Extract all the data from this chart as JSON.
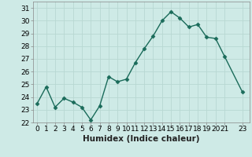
{
  "x": [
    0,
    1,
    2,
    3,
    4,
    5,
    6,
    7,
    8,
    9,
    10,
    11,
    12,
    13,
    14,
    15,
    16,
    17,
    18,
    19,
    20,
    21,
    23
  ],
  "y": [
    23.5,
    24.8,
    23.2,
    23.9,
    23.6,
    23.2,
    22.2,
    23.3,
    25.6,
    25.2,
    25.4,
    26.7,
    27.8,
    28.8,
    30.0,
    30.7,
    30.2,
    29.5,
    29.7,
    28.7,
    28.6,
    27.2,
    24.4
  ],
  "line_color": "#1a6b5a",
  "marker": "D",
  "marker_size": 2.5,
  "bg_color": "#ceeae6",
  "grid_color": "#b8d8d2",
  "xlabel": "Humidex (Indice chaleur)",
  "ylim": [
    22,
    31.5
  ],
  "yticks": [
    22,
    23,
    24,
    25,
    26,
    27,
    28,
    29,
    30,
    31
  ],
  "xticks": [
    0,
    1,
    2,
    3,
    4,
    5,
    6,
    7,
    8,
    9,
    10,
    11,
    12,
    13,
    14,
    15,
    16,
    17,
    18,
    19,
    20,
    21,
    23
  ],
  "tick_fontsize": 6.5,
  "xlabel_fontsize": 7.5,
  "linewidth": 1.0,
  "spine_color": "#888888"
}
